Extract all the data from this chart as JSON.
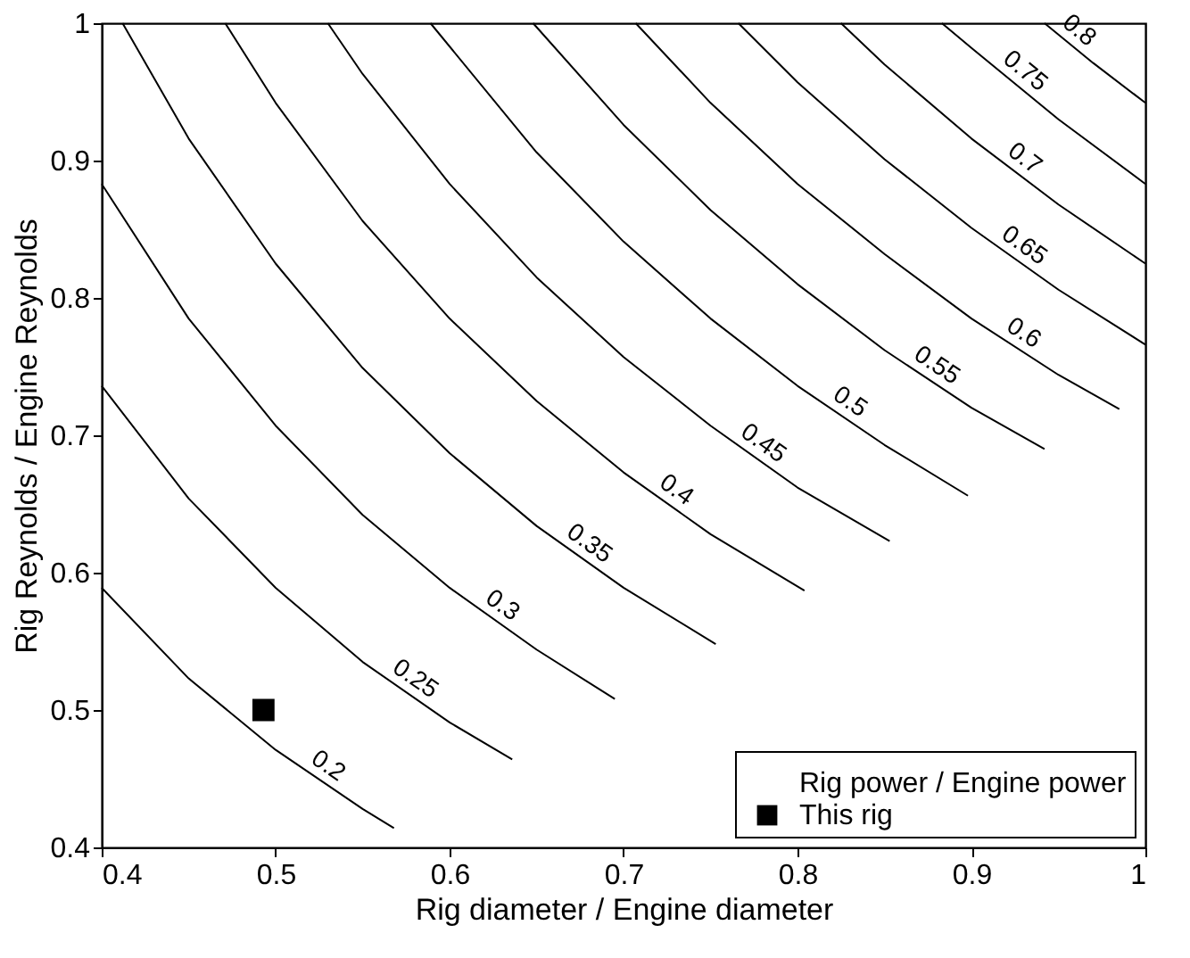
{
  "chart_data": {
    "type": "line",
    "xlabel": "Rig diameter / Engine diameter",
    "ylabel": "Rig Reynolds / Engine Reynolds",
    "xlim": [
      0.4,
      1
    ],
    "ylim": [
      0.4,
      1
    ],
    "xticks": [
      0.4,
      0.5,
      0.6,
      0.7,
      0.8,
      0.9,
      1
    ],
    "yticks": [
      0.4,
      0.5,
      0.6,
      0.7,
      0.8,
      0.9,
      1
    ],
    "grid": false,
    "legend": "bottom right",
    "line_style": "solid",
    "annotations": [
      "Rig power / Engine power"
    ],
    "series": [
      {
        "name": "0.2",
        "color": "#000000",
        "x": [
          0.4,
          0.45,
          0.5,
          0.55,
          0.568
        ],
        "values": [
          0.589,
          0.523,
          0.471,
          0.428,
          0.414
        ]
      },
      {
        "name": "0.25",
        "color": "#000000",
        "x": [
          0.4,
          0.45,
          0.5,
          0.55,
          0.6,
          0.636
        ],
        "values": [
          0.736,
          0.654,
          0.589,
          0.535,
          0.491,
          0.464
        ]
      },
      {
        "name": "0.3",
        "color": "#000000",
        "x": [
          0.4,
          0.45,
          0.5,
          0.55,
          0.6,
          0.65,
          0.695
        ],
        "values": [
          0.883,
          0.785,
          0.707,
          0.642,
          0.589,
          0.544,
          0.508
        ]
      },
      {
        "name": "0.35",
        "color": "#000000",
        "x": [
          0.412,
          0.45,
          0.5,
          0.55,
          0.6,
          0.65,
          0.7,
          0.753
        ],
        "values": [
          1.0,
          0.916,
          0.825,
          0.749,
          0.687,
          0.634,
          0.589,
          0.548
        ]
      },
      {
        "name": "0.4",
        "color": "#000000",
        "x": [
          0.471,
          0.5,
          0.55,
          0.6,
          0.65,
          0.7,
          0.75,
          0.804
        ],
        "values": [
          1.0,
          0.942,
          0.856,
          0.785,
          0.725,
          0.673,
          0.628,
          0.587
        ]
      },
      {
        "name": "0.45",
        "color": "#000000",
        "x": [
          0.53,
          0.55,
          0.6,
          0.65,
          0.7,
          0.75,
          0.8,
          0.853
        ],
        "values": [
          1.0,
          0.963,
          0.883,
          0.815,
          0.757,
          0.707,
          0.662,
          0.623
        ]
      },
      {
        "name": "0.5",
        "color": "#000000",
        "x": [
          0.589,
          0.65,
          0.7,
          0.75,
          0.8,
          0.85,
          0.898
        ],
        "values": [
          1.0,
          0.906,
          0.841,
          0.785,
          0.736,
          0.693,
          0.656
        ]
      },
      {
        "name": "0.55",
        "color": "#000000",
        "x": [
          0.648,
          0.7,
          0.75,
          0.8,
          0.85,
          0.9,
          0.942
        ],
        "values": [
          1.0,
          0.926,
          0.864,
          0.81,
          0.762,
          0.72,
          0.69
        ]
      },
      {
        "name": "0.6",
        "color": "#000000",
        "x": [
          0.707,
          0.75,
          0.8,
          0.85,
          0.9,
          0.95,
          0.985
        ],
        "values": [
          1.0,
          0.942,
          0.883,
          0.832,
          0.785,
          0.744,
          0.719
        ]
      },
      {
        "name": "0.65",
        "color": "#000000",
        "x": [
          0.766,
          0.8,
          0.85,
          0.9,
          0.95,
          1.0
        ],
        "values": [
          1.0,
          0.957,
          0.901,
          0.851,
          0.806,
          0.766
        ]
      },
      {
        "name": "0.7",
        "color": "#000000",
        "x": [
          0.825,
          0.85,
          0.9,
          0.95,
          1.0
        ],
        "values": [
          1.0,
          0.97,
          0.916,
          0.868,
          0.825
        ]
      },
      {
        "name": "0.75",
        "color": "#000000",
        "x": [
          0.883,
          0.9,
          0.95,
          1.0
        ],
        "values": [
          1.0,
          0.982,
          0.93,
          0.883
        ]
      },
      {
        "name": "0.8",
        "color": "#000000",
        "x": [
          0.942,
          0.97,
          1.0
        ],
        "values": [
          1.0,
          0.971,
          0.942
        ]
      },
      {
        "name": "This rig",
        "type": "scatter",
        "marker": "square",
        "color": "#000000",
        "x": [
          0.493
        ],
        "values": [
          0.5
        ]
      }
    ]
  }
}
